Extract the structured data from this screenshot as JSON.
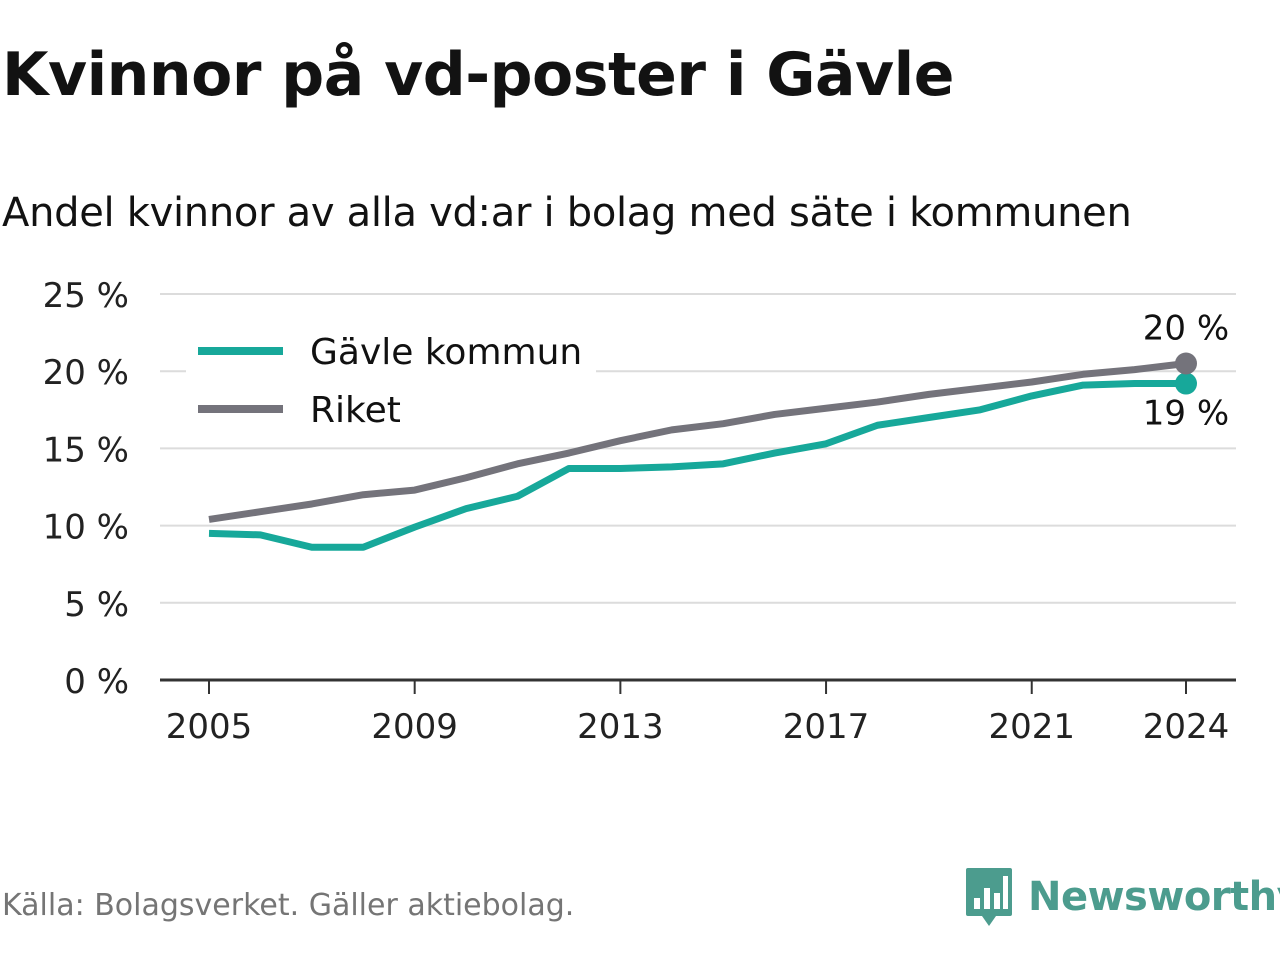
{
  "title": "Kvinnor på vd-poster i Gävle",
  "subtitle": "Andel kvinnor av alla vd:ar i bolag med säte i kommunen",
  "source": "Källa: Bolagsverket. Gäller aktiebolag.",
  "brand": {
    "name": "Newsworthy",
    "icon": "newsworthy-logo-icon",
    "color": "#4c9c8e"
  },
  "chart_data": {
    "type": "line",
    "x": [
      2005,
      2006,
      2007,
      2008,
      2009,
      2010,
      2011,
      2012,
      2013,
      2014,
      2015,
      2016,
      2017,
      2018,
      2019,
      2020,
      2021,
      2022,
      2023,
      2024
    ],
    "x_ticks": [
      2005,
      2009,
      2013,
      2017,
      2021,
      2024
    ],
    "x_tick_labels": [
      "2005",
      "2009",
      "2013",
      "2017",
      "2021",
      "2024"
    ],
    "y_ticks": [
      0,
      5,
      10,
      15,
      20,
      25
    ],
    "y_tick_labels": [
      "0 %",
      "5 %",
      "10 %",
      "15 %",
      "20 %",
      "25 %"
    ],
    "ylim": [
      0,
      25
    ],
    "grid": true,
    "legend_position": "top-left",
    "series": [
      {
        "name": "Gävle kommun",
        "color": "#17a89a",
        "values": [
          9.5,
          9.4,
          8.6,
          8.6,
          9.9,
          11.1,
          11.9,
          13.7,
          13.7,
          13.8,
          14.0,
          14.7,
          15.3,
          16.5,
          17.0,
          17.5,
          18.4,
          19.1,
          19.2,
          19.2
        ],
        "end_label": "19 %"
      },
      {
        "name": "Riket",
        "color": "#74737b",
        "values": [
          10.4,
          10.9,
          11.4,
          12.0,
          12.3,
          13.1,
          14.0,
          14.7,
          15.5,
          16.2,
          16.6,
          17.2,
          17.6,
          18.0,
          18.5,
          18.9,
          19.3,
          19.8,
          20.1,
          20.5
        ],
        "end_label": "20 %"
      }
    ],
    "grid_color": "#dcdcdc",
    "axis_color": "#333333"
  }
}
